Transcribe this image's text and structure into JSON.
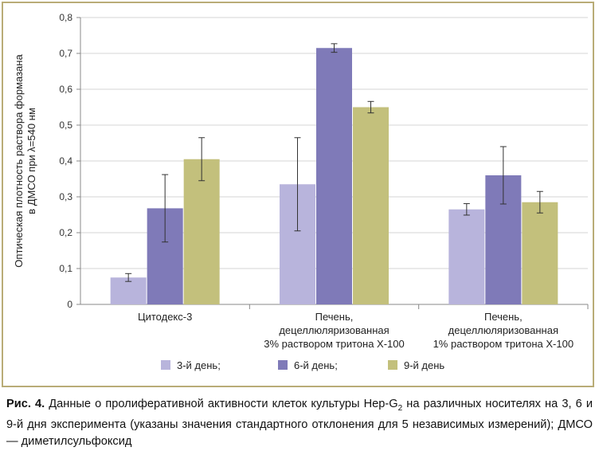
{
  "chart_data": {
    "type": "bar",
    "ylabel_line1": "Оптическая плотность раствора формазана",
    "ylabel_line2": "в ДМСО при λ=540 нм",
    "ylim": [
      0,
      0.8
    ],
    "yticks": [
      "0",
      "0,1",
      "0,2",
      "0,3",
      "0,4",
      "0,5",
      "0,6",
      "0,7",
      "0,8"
    ],
    "grid": true,
    "legend_position": "bottom",
    "categories": [
      [
        "Цитодекс-3"
      ],
      [
        "Печень,",
        "децеллюляризованная",
        "3% раствором тритона Х-100"
      ],
      [
        "Печень,",
        "децеллюляризованная",
        "1% раствором тритона Х-100"
      ]
    ],
    "series": [
      {
        "name": "3-й день;",
        "color": "#b8b4dc",
        "values": [
          0.075,
          0.335,
          0.265
        ],
        "errors": [
          0.011,
          0.13,
          0.016
        ]
      },
      {
        "name": "6-й день;",
        "color": "#7f7ab8",
        "values": [
          0.268,
          0.715,
          0.36
        ],
        "errors": [
          0.094,
          0.012,
          0.08
        ]
      },
      {
        "name": "9-й день",
        "color": "#c3c07c",
        "values": [
          0.405,
          0.55,
          0.285
        ],
        "errors": [
          0.06,
          0.016,
          0.03
        ]
      }
    ]
  },
  "caption": {
    "label": "Рис. 4.",
    "text_before_sub": " Данные о пролиферативной активности клеток культуры Hep-G",
    "subscript": "2",
    "text_after_sub": " на различных носителях на 3, 6 и 9-й дня эксперимента (указаны значения стандартного отклонения для 5 независимых измерений); ДМСО — диметилсульфоксид"
  }
}
